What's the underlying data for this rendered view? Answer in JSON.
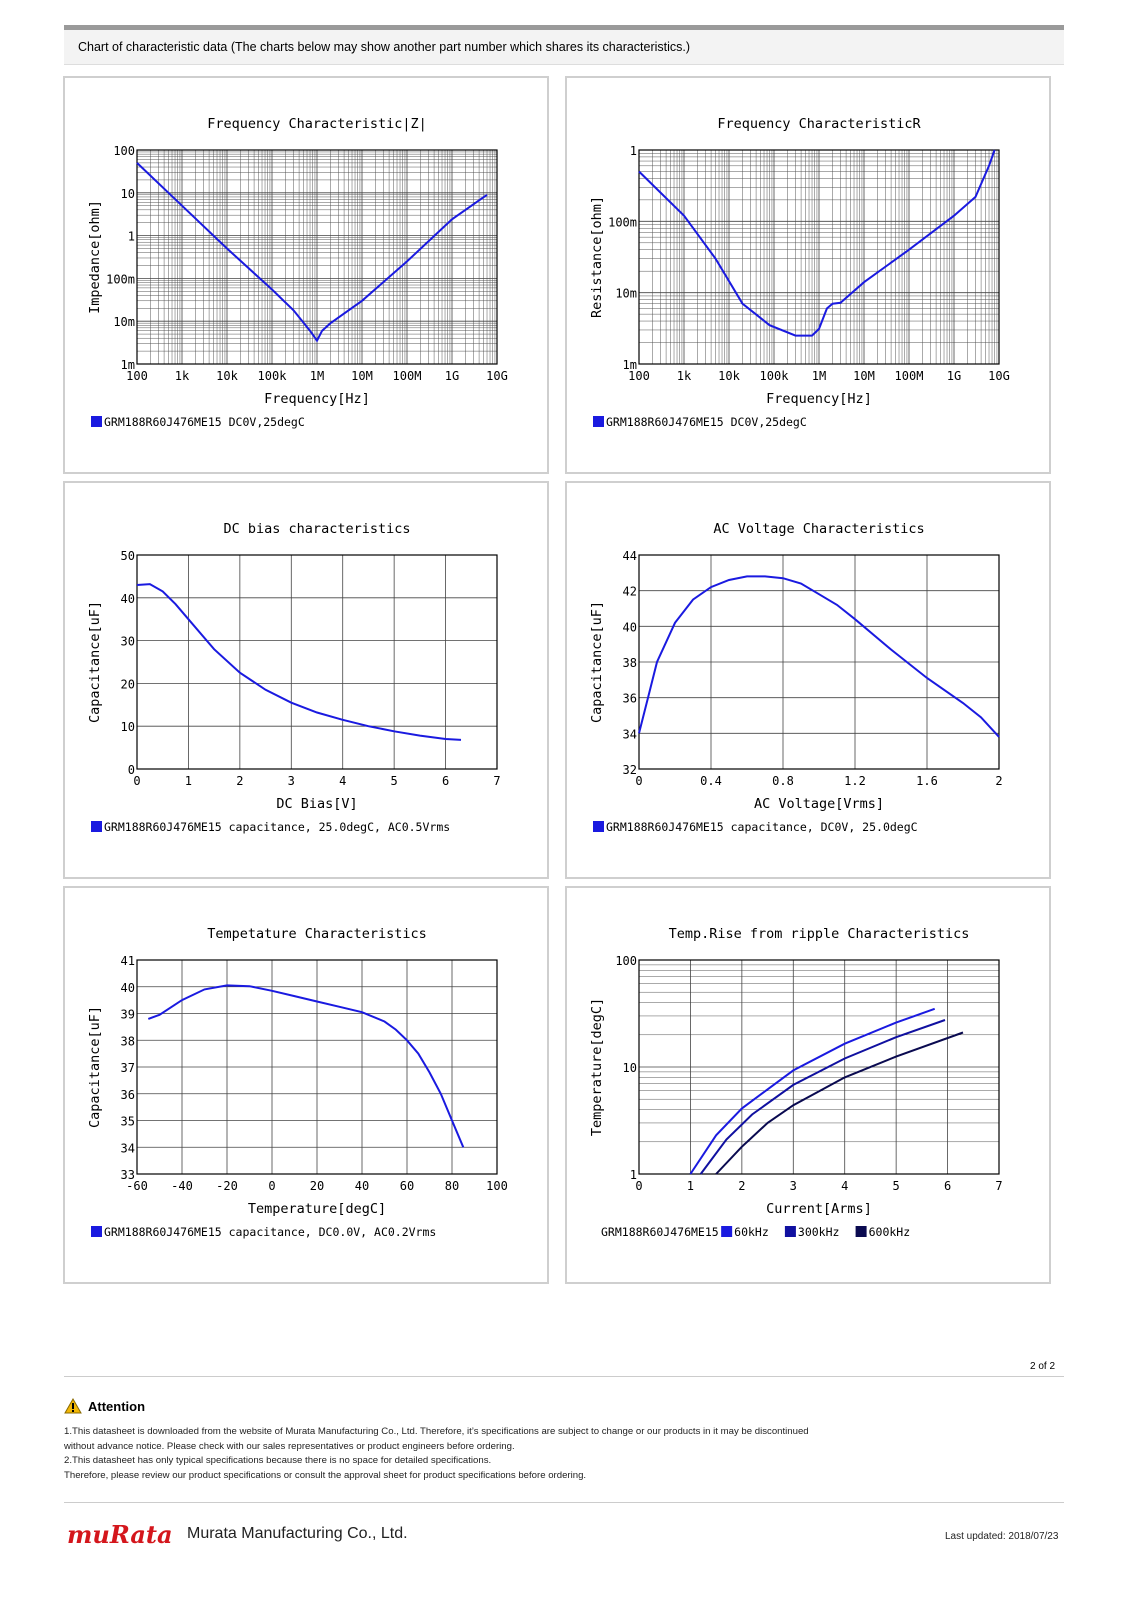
{
  "header": {
    "title": "Chart of characteristic data (The charts below may show another part number which shares its characteristics.)"
  },
  "chart_data": [
    {
      "type": "line",
      "title": "Frequency  Characteristic|Z|",
      "xlabel": "Frequency[Hz]",
      "ylabel": "Impedance[ohm]",
      "xscale": "log",
      "yscale": "log",
      "xlim": [
        100,
        10000000000
      ],
      "ylim": [
        0.001,
        100
      ],
      "xticks": [
        "100",
        "1k",
        "10k",
        "100k",
        "1M",
        "10M",
        "100M",
        "1G",
        "10G"
      ],
      "yticks": [
        "1m",
        "10m",
        "100m",
        "1",
        "10",
        "100"
      ],
      "series": [
        {
          "name": "GRM188R60J476ME15 DC0V,25degC",
          "color": "#1a1ae0",
          "x": [
            100,
            1000,
            10000,
            100000,
            300000,
            700000,
            1000000,
            1300000,
            2000000,
            10000000,
            100000000,
            1000000000,
            6000000000
          ],
          "y": [
            50,
            5,
            0.5,
            0.055,
            0.018,
            0.006,
            0.0035,
            0.006,
            0.009,
            0.03,
            0.25,
            2.4,
            9
          ]
        }
      ],
      "legend": "bottom-left"
    },
    {
      "type": "line",
      "title": "Frequency  CharacteristicR",
      "xlabel": "Frequency[Hz]",
      "ylabel": "Resistance[ohm]",
      "xscale": "log",
      "yscale": "log",
      "xlim": [
        100,
        10000000000
      ],
      "ylim": [
        0.001,
        1
      ],
      "xticks": [
        "100",
        "1k",
        "10k",
        "100k",
        "1M",
        "10M",
        "100M",
        "1G",
        "10G"
      ],
      "yticks": [
        "1m",
        "10m",
        "100m",
        "1"
      ],
      "series": [
        {
          "name": "GRM188R60J476ME15 DC0V,25degC",
          "color": "#1a1ae0",
          "x": [
            100,
            1000,
            5000,
            20000,
            80000,
            300000,
            700000,
            1000000,
            1500000,
            2000000,
            3000000,
            10000000,
            100000000,
            1000000000,
            3000000000,
            6000000000,
            8000000000
          ],
          "y": [
            0.5,
            0.12,
            0.03,
            0.007,
            0.0035,
            0.0025,
            0.0025,
            0.0031,
            0.006,
            0.007,
            0.0072,
            0.014,
            0.04,
            0.12,
            0.22,
            0.6,
            1.0
          ]
        }
      ],
      "legend": "bottom-left"
    },
    {
      "type": "line",
      "title": "DC bias characteristics",
      "xlabel": "DC Bias[V]",
      "ylabel": "Capacitance[uF]",
      "xlim": [
        0,
        7
      ],
      "ylim": [
        0,
        50
      ],
      "xticks": [
        "0",
        "1",
        "2",
        "3",
        "4",
        "5",
        "6",
        "7"
      ],
      "yticks": [
        "0",
        "10",
        "20",
        "30",
        "40",
        "50"
      ],
      "series": [
        {
          "name": "GRM188R60J476ME15 capacitance, 25.0degC, AC0.5Vrms",
          "color": "#1a1ae0",
          "x": [
            0,
            0.25,
            0.5,
            0.75,
            1,
            1.5,
            2,
            2.5,
            3,
            3.5,
            4,
            4.5,
            5,
            5.5,
            6,
            6.3
          ],
          "y": [
            43,
            43.2,
            41.5,
            38.5,
            35,
            28,
            22.5,
            18.5,
            15.5,
            13.2,
            11.5,
            10,
            8.8,
            7.8,
            7,
            6.8
          ]
        }
      ],
      "legend": "bottom-left"
    },
    {
      "type": "line",
      "title": "AC Voltage Characteristics",
      "xlabel": "AC Voltage[Vrms]",
      "ylabel": "Capacitance[uF]",
      "xlim": [
        0,
        2
      ],
      "ylim": [
        32,
        44
      ],
      "xticks": [
        "0",
        "0.4",
        "0.8",
        "1.2",
        "1.6",
        "2"
      ],
      "yticks": [
        "32",
        "34",
        "36",
        "38",
        "40",
        "42",
        "44"
      ],
      "series": [
        {
          "name": "GRM188R60J476ME15 capacitance, DC0V, 25.0degC",
          "color": "#1a1ae0",
          "x": [
            0,
            0.05,
            0.1,
            0.2,
            0.3,
            0.4,
            0.5,
            0.6,
            0.7,
            0.8,
            0.9,
            1.0,
            1.1,
            1.2,
            1.4,
            1.6,
            1.8,
            1.9,
            2.0
          ],
          "y": [
            34,
            36,
            38,
            40.2,
            41.5,
            42.2,
            42.6,
            42.8,
            42.8,
            42.7,
            42.4,
            41.8,
            41.2,
            40.4,
            38.7,
            37.1,
            35.7,
            34.9,
            33.8
          ]
        }
      ],
      "legend": "bottom-left"
    },
    {
      "type": "line",
      "title": "Tempetature  Characteristics",
      "xlabel": "Temperature[degC]",
      "ylabel": "Capacitance[uF]",
      "xlim": [
        -60,
        100
      ],
      "ylim": [
        33,
        41
      ],
      "xticks": [
        "-60",
        "-40",
        "-20",
        "0",
        "20",
        "40",
        "60",
        "80",
        "100"
      ],
      "yticks": [
        "33",
        "34",
        "35",
        "36",
        "37",
        "38",
        "39",
        "40",
        "41"
      ],
      "series": [
        {
          "name": "GRM188R60J476ME15 capacitance, DC0.0V, AC0.2Vrms",
          "color": "#1a1ae0",
          "x": [
            -55,
            -50,
            -40,
            -30,
            -20,
            -10,
            0,
            10,
            20,
            30,
            40,
            50,
            55,
            60,
            65,
            70,
            75,
            80,
            85
          ],
          "y": [
            38.8,
            38.95,
            39.5,
            39.9,
            40.05,
            40.02,
            39.85,
            39.65,
            39.45,
            39.25,
            39.05,
            38.7,
            38.4,
            38,
            37.5,
            36.8,
            36,
            35,
            34
          ]
        }
      ],
      "legend": "bottom-left"
    },
    {
      "type": "line",
      "title": "Temp.Rise from ripple Characteristics",
      "xlabel": "Current[Arms]",
      "ylabel": "Temperature[degC]",
      "yscale": "log",
      "xlim": [
        0,
        7
      ],
      "ylim": [
        1,
        100
      ],
      "xticks": [
        "0",
        "1",
        "2",
        "3",
        "4",
        "5",
        "6",
        "7"
      ],
      "yticks": [
        "1",
        "10",
        "100"
      ],
      "legend_prefix": "GRM188R60J476ME15",
      "series": [
        {
          "name": "60kHz",
          "color": "#1a1ae0",
          "x": [
            1,
            1.5,
            2,
            3,
            4,
            5,
            5.75
          ],
          "y": [
            1,
            2.3,
            4.1,
            9.3,
            16.5,
            26,
            35
          ]
        },
        {
          "name": "300kHz",
          "color": "#1010a0",
          "x": [
            1.2,
            1.7,
            2.2,
            3,
            4,
            5,
            5.95
          ],
          "y": [
            1,
            2.1,
            3.6,
            6.8,
            12,
            19,
            27.5
          ]
        },
        {
          "name": "600kHz",
          "color": "#0a0a50",
          "x": [
            1.5,
            2,
            2.5,
            3,
            4,
            5,
            6.3
          ],
          "y": [
            1,
            1.8,
            3,
            4.4,
            8,
            12.5,
            21
          ]
        }
      ],
      "legend": "bottom-left"
    }
  ],
  "pagenum": "2 of 2",
  "attention": {
    "title": "Attention",
    "lines": [
      "1.This datasheet is downloaded from the website of Murata Manufacturing Co., Ltd. Therefore, it’s specifications are subject to change or our products in it may be discontinued",
      "without advance notice. Please check with our sales representatives or product engineers before ordering.",
      "2.This datasheet has only typical specifications because there is no space for detailed specifications.",
      "Therefore, please review our product specifications or consult the approval sheet for product specifications before ordering."
    ]
  },
  "footer": {
    "logo": "muRata",
    "company": "Murata Manufacturing Co., Ltd.",
    "updated": "Last updated: 2018/07/23"
  }
}
